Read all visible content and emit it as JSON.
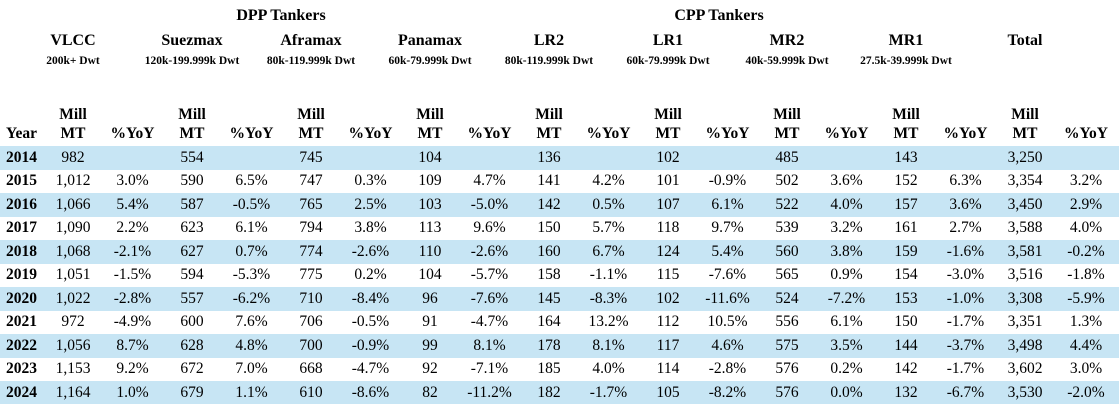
{
  "colors": {
    "stripe": "#C7E5F4",
    "text": "#000000",
    "background": "#FFFFFF"
  },
  "table": {
    "groups": [
      {
        "label": "DPP Tankers"
      },
      {
        "label": "CPP Tankers"
      }
    ],
    "header": {
      "year": "Year",
      "mill": "Mill",
      "mt": "MT",
      "yoy": "%YoY"
    },
    "categories": [
      {
        "name": "VLCC",
        "dwt": "200k+ Dwt"
      },
      {
        "name": "Suezmax",
        "dwt": "120k-199.999k Dwt"
      },
      {
        "name": "Aframax",
        "dwt": "80k-119.999k Dwt"
      },
      {
        "name": "Panamax",
        "dwt": "60k-79.999k Dwt"
      },
      {
        "name": "LR2",
        "dwt": "80k-119.999k Dwt"
      },
      {
        "name": "LR1",
        "dwt": "60k-79.999k Dwt"
      },
      {
        "name": "MR2",
        "dwt": "40k-59.999k Dwt"
      },
      {
        "name": "MR1",
        "dwt": "27.5k-39.999k Dwt"
      },
      {
        "name": "Total",
        "dwt": ""
      }
    ],
    "rows": [
      {
        "year": "2014",
        "values": [
          "982",
          "",
          "554",
          "",
          "745",
          "",
          "104",
          "",
          "136",
          "",
          "102",
          "",
          "485",
          "",
          "143",
          "",
          "3,250",
          ""
        ]
      },
      {
        "year": "2015",
        "values": [
          "1,012",
          "3.0%",
          "590",
          "6.5%",
          "747",
          "0.3%",
          "109",
          "4.7%",
          "141",
          "4.2%",
          "101",
          "-0.9%",
          "502",
          "3.6%",
          "152",
          "6.3%",
          "3,354",
          "3.2%"
        ]
      },
      {
        "year": "2016",
        "values": [
          "1,066",
          "5.4%",
          "587",
          "-0.5%",
          "765",
          "2.5%",
          "103",
          "-5.0%",
          "142",
          "0.5%",
          "107",
          "6.1%",
          "522",
          "4.0%",
          "157",
          "3.6%",
          "3,450",
          "2.9%"
        ]
      },
      {
        "year": "2017",
        "values": [
          "1,090",
          "2.2%",
          "623",
          "6.1%",
          "794",
          "3.8%",
          "113",
          "9.6%",
          "150",
          "5.7%",
          "118",
          "9.7%",
          "539",
          "3.2%",
          "161",
          "2.7%",
          "3,588",
          "4.0%"
        ]
      },
      {
        "year": "2018",
        "values": [
          "1,068",
          "-2.1%",
          "627",
          "0.7%",
          "774",
          "-2.6%",
          "110",
          "-2.6%",
          "160",
          "6.7%",
          "124",
          "5.4%",
          "560",
          "3.8%",
          "159",
          "-1.6%",
          "3,581",
          "-0.2%"
        ]
      },
      {
        "year": "2019",
        "values": [
          "1,051",
          "-1.5%",
          "594",
          "-5.3%",
          "775",
          "0.2%",
          "104",
          "-5.7%",
          "158",
          "-1.1%",
          "115",
          "-7.6%",
          "565",
          "0.9%",
          "154",
          "-3.0%",
          "3,516",
          "-1.8%"
        ]
      },
      {
        "year": "2020",
        "values": [
          "1,022",
          "-2.8%",
          "557",
          "-6.2%",
          "710",
          "-8.4%",
          "96",
          "-7.6%",
          "145",
          "-8.3%",
          "102",
          "-11.6%",
          "524",
          "-7.2%",
          "153",
          "-1.0%",
          "3,308",
          "-5.9%"
        ]
      },
      {
        "year": "2021",
        "values": [
          "972",
          "-4.9%",
          "600",
          "7.6%",
          "706",
          "-0.5%",
          "91",
          "-4.7%",
          "164",
          "13.2%",
          "112",
          "10.5%",
          "556",
          "6.1%",
          "150",
          "-1.7%",
          "3,351",
          "1.3%"
        ]
      },
      {
        "year": "2022",
        "values": [
          "1,056",
          "8.7%",
          "628",
          "4.8%",
          "700",
          "-0.9%",
          "99",
          "8.1%",
          "178",
          "8.1%",
          "117",
          "4.6%",
          "575",
          "3.5%",
          "144",
          "-3.7%",
          "3,498",
          "4.4%"
        ]
      },
      {
        "year": "2023",
        "values": [
          "1,153",
          "9.2%",
          "672",
          "7.0%",
          "668",
          "-4.7%",
          "92",
          "-7.1%",
          "185",
          "4.0%",
          "114",
          "-2.8%",
          "576",
          "0.2%",
          "142",
          "-1.7%",
          "3,602",
          "3.0%"
        ]
      },
      {
        "year": "2024",
        "values": [
          "1,164",
          "1.0%",
          "679",
          "1.1%",
          "610",
          "-8.6%",
          "82",
          "-11.2%",
          "182",
          "-1.7%",
          "105",
          "-8.2%",
          "576",
          "0.0%",
          "132",
          "-6.7%",
          "3,530",
          "-2.0%"
        ]
      }
    ]
  },
  "chart_data": {
    "type": "table",
    "title": "Tanker fleet supply, Mill MT and %YoY, DPP and CPP tankers",
    "x": [
      2014,
      2015,
      2016,
      2017,
      2018,
      2019,
      2020,
      2021,
      2022,
      2023,
      2024
    ],
    "series": [
      {
        "name": "VLCC",
        "group": "DPP Tankers",
        "dwt_range": "200k+ Dwt",
        "mill_mt": [
          982,
          1012,
          1066,
          1090,
          1068,
          1051,
          1022,
          972,
          1056,
          1153,
          1164
        ],
        "yoy_pct": [
          null,
          3.0,
          5.4,
          2.2,
          -2.1,
          -1.5,
          -2.8,
          -4.9,
          8.7,
          9.2,
          1.0
        ]
      },
      {
        "name": "Suezmax",
        "group": "DPP Tankers",
        "dwt_range": "120k-199.999k Dwt",
        "mill_mt": [
          554,
          590,
          587,
          623,
          627,
          594,
          557,
          600,
          628,
          672,
          679
        ],
        "yoy_pct": [
          null,
          6.5,
          -0.5,
          6.1,
          0.7,
          -5.3,
          -6.2,
          7.6,
          4.8,
          7.0,
          1.1
        ]
      },
      {
        "name": "Aframax",
        "group": "DPP Tankers",
        "dwt_range": "80k-119.999k Dwt",
        "mill_mt": [
          745,
          747,
          765,
          794,
          774,
          775,
          710,
          706,
          700,
          668,
          610
        ],
        "yoy_pct": [
          null,
          0.3,
          2.5,
          3.8,
          -2.6,
          0.2,
          -8.4,
          -0.5,
          -0.9,
          -4.7,
          -8.6
        ]
      },
      {
        "name": "Panamax",
        "group": "DPP Tankers",
        "dwt_range": "60k-79.999k Dwt",
        "mill_mt": [
          104,
          109,
          103,
          113,
          110,
          104,
          96,
          91,
          99,
          92,
          82
        ],
        "yoy_pct": [
          null,
          4.7,
          -5.0,
          9.6,
          -2.6,
          -5.7,
          -7.6,
          -4.7,
          8.1,
          -7.1,
          -11.2
        ]
      },
      {
        "name": "LR2",
        "group": "DPP Tankers",
        "dwt_range": "80k-119.999k Dwt",
        "mill_mt": [
          136,
          141,
          142,
          150,
          160,
          158,
          145,
          164,
          178,
          185,
          182
        ],
        "yoy_pct": [
          null,
          4.2,
          0.5,
          5.7,
          6.7,
          -1.1,
          -8.3,
          13.2,
          8.1,
          4.0,
          -1.7
        ]
      },
      {
        "name": "LR1",
        "group": "CPP Tankers",
        "dwt_range": "60k-79.999k Dwt",
        "mill_mt": [
          102,
          101,
          107,
          118,
          124,
          115,
          102,
          112,
          117,
          114,
          105
        ],
        "yoy_pct": [
          null,
          -0.9,
          6.1,
          9.7,
          5.4,
          -7.6,
          -11.6,
          10.5,
          4.6,
          -2.8,
          -8.2
        ]
      },
      {
        "name": "MR2",
        "group": "CPP Tankers",
        "dwt_range": "40k-59.999k Dwt",
        "mill_mt": [
          485,
          502,
          522,
          539,
          560,
          565,
          524,
          556,
          575,
          576,
          576
        ],
        "yoy_pct": [
          null,
          3.6,
          4.0,
          3.2,
          3.8,
          0.9,
          -7.2,
          6.1,
          3.5,
          0.2,
          0.0
        ]
      },
      {
        "name": "MR1",
        "group": "CPP Tankers",
        "dwt_range": "27.5k-39.999k Dwt",
        "mill_mt": [
          143,
          152,
          157,
          161,
          159,
          154,
          153,
          150,
          144,
          142,
          132
        ],
        "yoy_pct": [
          null,
          6.3,
          3.6,
          2.7,
          -1.6,
          -3.0,
          -1.0,
          -1.7,
          -3.7,
          -1.7,
          -6.7
        ]
      },
      {
        "name": "Total",
        "group": "",
        "dwt_range": "",
        "mill_mt": [
          3250,
          3354,
          3450,
          3588,
          3581,
          3516,
          3308,
          3351,
          3498,
          3602,
          3530
        ],
        "yoy_pct": [
          null,
          3.2,
          2.9,
          4.0,
          -0.2,
          -1.8,
          -5.9,
          1.3,
          4.4,
          3.0,
          -2.0
        ]
      }
    ],
    "units": "Mill MT",
    "row_striping": "even years highlighted"
  }
}
